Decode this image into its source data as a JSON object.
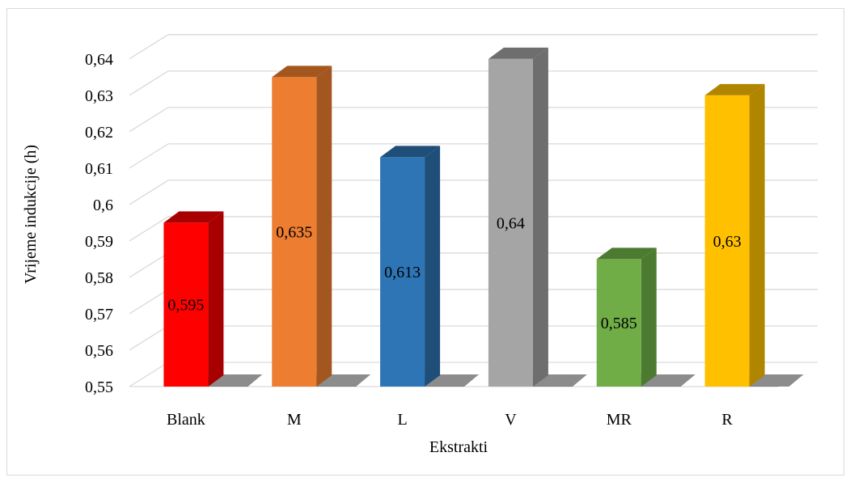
{
  "chart_data": {
    "type": "bar",
    "style": "3d-column",
    "categories": [
      "Blank",
      "M",
      "L",
      "V",
      "MR",
      "R"
    ],
    "values": [
      0.595,
      0.635,
      0.613,
      0.64,
      0.585,
      0.63
    ],
    "data_labels": [
      "0,595",
      "0,635",
      "0,613",
      "0,64",
      "0,585",
      "0,63"
    ],
    "colors": [
      "#ff0000",
      "#ed7d31",
      "#2e75b6",
      "#a5a5a5",
      "#70ad47",
      "#ffc000"
    ],
    "side_colors": [
      "#a80000",
      "#a4561f",
      "#1f4e79",
      "#6e6e6e",
      "#4d7a31",
      "#b08500"
    ],
    "xlabel": "Ekstrakti",
    "ylabel": "Vrijeme indukcije (h)",
    "ylim": [
      0.55,
      0.64
    ],
    "yticks": [
      "0,55",
      "0,56",
      "0,57",
      "0,58",
      "0,59",
      "0,6",
      "0,61",
      "0,62",
      "0,63",
      "0,64"
    ],
    "ytick_values": [
      0.55,
      0.56,
      0.57,
      0.58,
      0.59,
      0.6,
      0.61,
      0.62,
      0.63,
      0.64
    ],
    "grid": true,
    "legend": "none"
  }
}
